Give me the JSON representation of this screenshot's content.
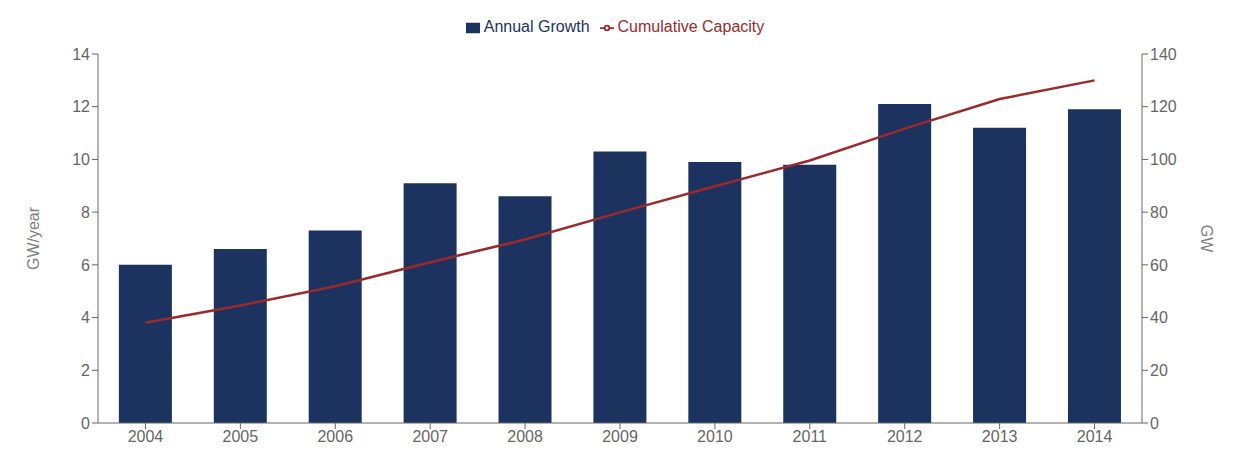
{
  "chart_data": {
    "type": "bar",
    "categories": [
      "2004",
      "2005",
      "2006",
      "2007",
      "2008",
      "2009",
      "2010",
      "2011",
      "2012",
      "2013",
      "2014"
    ],
    "series": [
      {
        "name": "Annual Growth",
        "type": "bar",
        "color": "#1c3360",
        "values": [
          6.0,
          6.6,
          7.3,
          9.1,
          8.6,
          10.3,
          9.9,
          9.8,
          12.1,
          11.2,
          11.9
        ]
      },
      {
        "name": "Cumulative Capacity",
        "type": "line",
        "axis": "y2",
        "color": "#9b2a2a",
        "marker": "none",
        "values": [
          38.0,
          44.6,
          51.9,
          61.0,
          69.6,
          79.9,
          89.8,
          99.6,
          111.7,
          122.9,
          130.0
        ]
      }
    ],
    "ylabel": "GW/year",
    "y2label": "GW",
    "ylim": [
      0,
      14
    ],
    "yticks": [
      0,
      2,
      4,
      6,
      8,
      10,
      12,
      14
    ],
    "y2lim": [
      0,
      140
    ],
    "y2ticks": [
      0,
      20,
      40,
      60,
      80,
      100,
      120,
      140
    ],
    "grid": false,
    "legend": "top"
  }
}
